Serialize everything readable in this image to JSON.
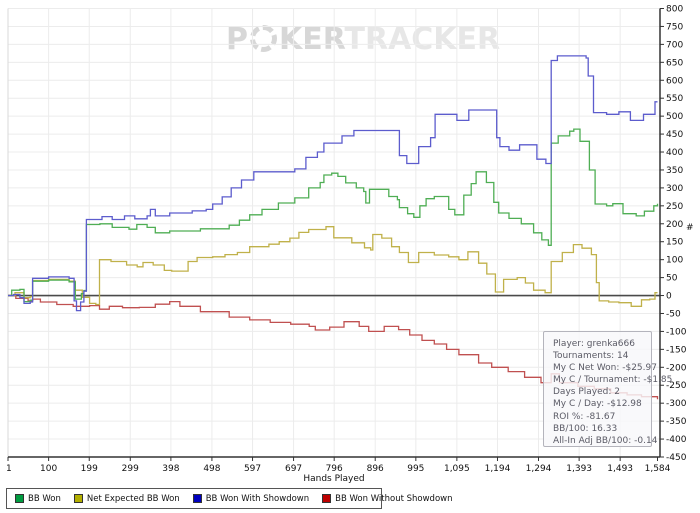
{
  "watermark": {
    "prefix": "P",
    "suffix": "KER",
    "secondary": "TRACKER"
  },
  "info_box": {
    "lines": [
      "Player: grenka666",
      "Tournaments: 14",
      "My C Net Won: -$25.97",
      "My C / Tournament: -$1.85",
      "Days Played: 2",
      "My C / Day: -$12.98",
      "ROI %: -81.67",
      "BB/100: 16.33",
      "All-In Adj BB/100: -0.14"
    ]
  },
  "legend": {
    "items": [
      {
        "label": "BB Won",
        "color": "#009c40"
      },
      {
        "label": "Net Expected BB Won",
        "color": "#b3af00"
      },
      {
        "label": "BB Won With Showdown",
        "color": "#0000bf"
      },
      {
        "label": "BB Won Without Showdown",
        "color": "#bd0000"
      }
    ]
  },
  "chart_data": {
    "type": "line",
    "step": "after",
    "title": "",
    "xlabel": "Hands Played",
    "ylabel": "#",
    "x_min": 1,
    "x_max": 1584,
    "y_min": -450,
    "y_max": 800,
    "y_step": 50,
    "grid": true,
    "legend_position": "bottom",
    "x_ticks": [
      {
        "v": 1,
        "label": "1"
      },
      {
        "v": 100,
        "label": "100"
      },
      {
        "v": 199,
        "label": "199"
      },
      {
        "v": 299,
        "label": "299"
      },
      {
        "v": 398,
        "label": "398"
      },
      {
        "v": 498,
        "label": "498"
      },
      {
        "v": 597,
        "label": "597"
      },
      {
        "v": 697,
        "label": "697"
      },
      {
        "v": 796,
        "label": "796"
      },
      {
        "v": 896,
        "label": "896"
      },
      {
        "v": 995,
        "label": "995"
      },
      {
        "v": 1095,
        "label": "1,095"
      },
      {
        "v": 1194,
        "label": "1,194"
      },
      {
        "v": 1294,
        "label": "1,294"
      },
      {
        "v": 1393,
        "label": "1,393"
      },
      {
        "v": 1493,
        "label": "1,493"
      },
      {
        "v": 1584,
        "label": "1,584"
      }
    ],
    "series": [
      {
        "name": "BB Won",
        "color": "#4fae54",
        "points": [
          [
            1,
            0
          ],
          [
            10,
            15
          ],
          [
            30,
            17
          ],
          [
            40,
            -17
          ],
          [
            55,
            -13
          ],
          [
            61,
            40
          ],
          [
            100,
            43
          ],
          [
            150,
            38
          ],
          [
            165,
            -10
          ],
          [
            180,
            5
          ],
          [
            186,
            14
          ],
          [
            192,
            198
          ],
          [
            225,
            200
          ],
          [
            255,
            190
          ],
          [
            296,
            185
          ],
          [
            315,
            198
          ],
          [
            340,
            190
          ],
          [
            360,
            175
          ],
          [
            395,
            180
          ],
          [
            470,
            186
          ],
          [
            540,
            196
          ],
          [
            565,
            210
          ],
          [
            590,
            225
          ],
          [
            620,
            240
          ],
          [
            660,
            258
          ],
          [
            700,
            272
          ],
          [
            734,
            300
          ],
          [
            762,
            315
          ],
          [
            771,
            336
          ],
          [
            790,
            341
          ],
          [
            805,
            332
          ],
          [
            824,
            314
          ],
          [
            850,
            300
          ],
          [
            868,
            290
          ],
          [
            873,
            258
          ],
          [
            882,
            296
          ],
          [
            929,
            276
          ],
          [
            950,
            267
          ],
          [
            955,
            245
          ],
          [
            975,
            228
          ],
          [
            990,
            218
          ],
          [
            1005,
            250
          ],
          [
            1020,
            270
          ],
          [
            1040,
            276
          ],
          [
            1075,
            240
          ],
          [
            1090,
            225
          ],
          [
            1112,
            280
          ],
          [
            1130,
            312
          ],
          [
            1142,
            345
          ],
          [
            1167,
            315
          ],
          [
            1185,
            260
          ],
          [
            1197,
            230
          ],
          [
            1222,
            215
          ],
          [
            1252,
            200
          ],
          [
            1282,
            175
          ],
          [
            1302,
            155
          ],
          [
            1318,
            140
          ],
          [
            1325,
            425
          ],
          [
            1342,
            445
          ],
          [
            1370,
            458
          ],
          [
            1380,
            464
          ],
          [
            1395,
            430
          ],
          [
            1418,
            350
          ],
          [
            1432,
            255
          ],
          [
            1460,
            250
          ],
          [
            1475,
            256
          ],
          [
            1500,
            228
          ],
          [
            1532,
            222
          ],
          [
            1552,
            235
          ],
          [
            1575,
            250
          ],
          [
            1584,
            256
          ]
        ]
      },
      {
        "name": "Net Expected BB Won",
        "color": "#c0b14a",
        "points": [
          [
            1,
            0
          ],
          [
            18,
            8
          ],
          [
            40,
            -6
          ],
          [
            55,
            -3
          ],
          [
            61,
            42
          ],
          [
            100,
            45
          ],
          [
            150,
            40
          ],
          [
            165,
            15
          ],
          [
            182,
            -5
          ],
          [
            200,
            -22
          ],
          [
            215,
            -25
          ],
          [
            224,
            100
          ],
          [
            252,
            95
          ],
          [
            290,
            85
          ],
          [
            316,
            80
          ],
          [
            330,
            92
          ],
          [
            355,
            85
          ],
          [
            382,
            70
          ],
          [
            400,
            68
          ],
          [
            440,
            95
          ],
          [
            462,
            106
          ],
          [
            500,
            108
          ],
          [
            530,
            114
          ],
          [
            560,
            120
          ],
          [
            590,
            136
          ],
          [
            637,
            143
          ],
          [
            662,
            150
          ],
          [
            688,
            160
          ],
          [
            710,
            176
          ],
          [
            734,
            184
          ],
          [
            776,
            192
          ],
          [
            795,
            161
          ],
          [
            839,
            147
          ],
          [
            870,
            133
          ],
          [
            885,
            127
          ],
          [
            890,
            170
          ],
          [
            912,
            160
          ],
          [
            936,
            136
          ],
          [
            955,
            120
          ],
          [
            977,
            92
          ],
          [
            1002,
            120
          ],
          [
            1040,
            113
          ],
          [
            1075,
            108
          ],
          [
            1100,
            100
          ],
          [
            1122,
            122
          ],
          [
            1148,
            90
          ],
          [
            1168,
            60
          ],
          [
            1189,
            10
          ],
          [
            1209,
            45
          ],
          [
            1242,
            50
          ],
          [
            1262,
            35
          ],
          [
            1282,
            15
          ],
          [
            1310,
            8
          ],
          [
            1325,
            95
          ],
          [
            1352,
            120
          ],
          [
            1379,
            142
          ],
          [
            1400,
            132
          ],
          [
            1423,
            114
          ],
          [
            1435,
            36
          ],
          [
            1442,
            -15
          ],
          [
            1465,
            -18
          ],
          [
            1490,
            -20
          ],
          [
            1520,
            -30
          ],
          [
            1545,
            -12
          ],
          [
            1565,
            -10
          ],
          [
            1578,
            8
          ],
          [
            1584,
            8
          ]
        ]
      },
      {
        "name": "BB Won With Showdown",
        "color": "#5c5ccd",
        "points": [
          [
            1,
            0
          ],
          [
            15,
            3
          ],
          [
            30,
            -6
          ],
          [
            40,
            -22
          ],
          [
            55,
            -18
          ],
          [
            61,
            48
          ],
          [
            100,
            52
          ],
          [
            150,
            48
          ],
          [
            162,
            -15
          ],
          [
            168,
            -42
          ],
          [
            178,
            -18
          ],
          [
            186,
            12
          ],
          [
            192,
            212
          ],
          [
            230,
            220
          ],
          [
            255,
            212
          ],
          [
            285,
            222
          ],
          [
            310,
            214
          ],
          [
            340,
            222
          ],
          [
            348,
            240
          ],
          [
            360,
            222
          ],
          [
            395,
            230
          ],
          [
            450,
            236
          ],
          [
            484,
            240
          ],
          [
            500,
            255
          ],
          [
            523,
            275
          ],
          [
            545,
            300
          ],
          [
            570,
            322
          ],
          [
            600,
            345
          ],
          [
            700,
            353
          ],
          [
            727,
            385
          ],
          [
            755,
            400
          ],
          [
            771,
            425
          ],
          [
            815,
            445
          ],
          [
            844,
            460
          ],
          [
            950,
            460
          ],
          [
            955,
            390
          ],
          [
            973,
            368
          ],
          [
            1002,
            415
          ],
          [
            1031,
            440
          ],
          [
            1042,
            505
          ],
          [
            1095,
            488
          ],
          [
            1124,
            517
          ],
          [
            1192,
            440
          ],
          [
            1200,
            415
          ],
          [
            1222,
            405
          ],
          [
            1248,
            420
          ],
          [
            1290,
            380
          ],
          [
            1312,
            368
          ],
          [
            1325,
            655
          ],
          [
            1340,
            668
          ],
          [
            1410,
            662
          ],
          [
            1415,
            612
          ],
          [
            1428,
            510
          ],
          [
            1460,
            505
          ],
          [
            1490,
            512
          ],
          [
            1518,
            488
          ],
          [
            1550,
            505
          ],
          [
            1578,
            540
          ],
          [
            1584,
            540
          ]
        ]
      },
      {
        "name": "BB Won Without Showdown",
        "color": "#c05050",
        "points": [
          [
            1,
            0
          ],
          [
            20,
            -8
          ],
          [
            50,
            -15
          ],
          [
            61,
            -10
          ],
          [
            80,
            -18
          ],
          [
            120,
            -25
          ],
          [
            160,
            -30
          ],
          [
            200,
            -28
          ],
          [
            224,
            -38
          ],
          [
            248,
            -30
          ],
          [
            280,
            -34
          ],
          [
            321,
            -33
          ],
          [
            360,
            -24
          ],
          [
            395,
            -17
          ],
          [
            420,
            -30
          ],
          [
            470,
            -45
          ],
          [
            540,
            -60
          ],
          [
            590,
            -68
          ],
          [
            640,
            -75
          ],
          [
            690,
            -80
          ],
          [
            735,
            -86
          ],
          [
            750,
            -96
          ],
          [
            785,
            -88
          ],
          [
            820,
            -73
          ],
          [
            857,
            -86
          ],
          [
            880,
            -100
          ],
          [
            918,
            -86
          ],
          [
            953,
            -95
          ],
          [
            980,
            -110
          ],
          [
            1010,
            -125
          ],
          [
            1040,
            -135
          ],
          [
            1070,
            -150
          ],
          [
            1100,
            -165
          ],
          [
            1148,
            -188
          ],
          [
            1180,
            -200
          ],
          [
            1220,
            -212
          ],
          [
            1260,
            -228
          ],
          [
            1300,
            -243
          ],
          [
            1325,
            -218
          ],
          [
            1345,
            -243
          ],
          [
            1390,
            -253
          ],
          [
            1430,
            -260
          ],
          [
            1470,
            -271
          ],
          [
            1510,
            -277
          ],
          [
            1545,
            -282
          ],
          [
            1584,
            -289
          ]
        ]
      }
    ]
  }
}
